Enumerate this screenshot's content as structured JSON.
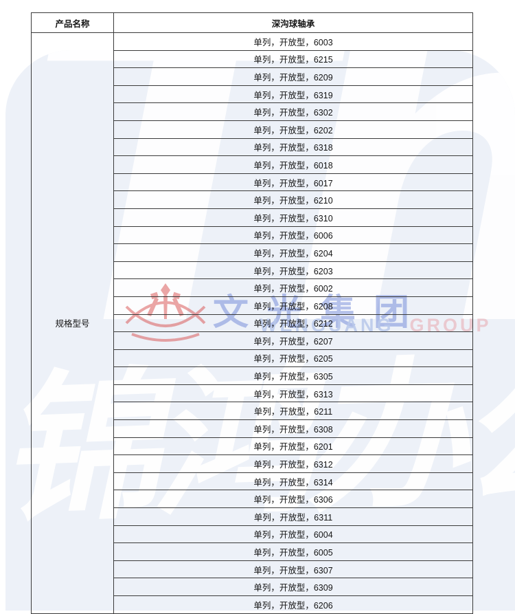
{
  "table": {
    "header": {
      "product_name_label": "产品名称",
      "product_name_value": "深沟球轴承"
    },
    "row_label": "规格型号",
    "rows": [
      "单列，开放型，6003",
      "单列，开放型，6215",
      "单列，开放型，6209",
      "单列，开放型，6319",
      "单列，开放型，6302",
      "单列，开放型，6202",
      "单列，开放型，6318",
      "单列，开放型，6018",
      "单列，开放型，6017",
      "单列，开放型，6210",
      "单列，开放型，6310",
      "单列，开放型，6006",
      "单列，开放型，6204",
      "单列，开放型，6203",
      "单列，开放型，6002",
      "单列，开放型，6208",
      "单列，开放型，6212",
      "单列，开放型，6207",
      "单列，开放型，6205",
      "单列，开放型，6305",
      "单列，开放型，6313",
      "单列，开放型，6211",
      "单列，开放型，6308",
      "单列，开放型，6201",
      "单列，开放型，6312",
      "单列，开放型，6314",
      "单列，开放型，6306",
      "单列，开放型，6311",
      "单列，开放型，6004",
      "单列，开放型，6005",
      "单列，开放型，6307",
      "单列，开放型，6309",
      "单列，开放型，6206"
    ]
  },
  "watermark": {
    "monogram": "Th",
    "calligraphy": "锦鸿办公",
    "company_cn": "文光集团",
    "company_en_word1": "WENGUANG",
    "company_en_word2": "GROUP",
    "colors": {
      "pale_blue_bg": "#edf1f8",
      "logo_red": "#d94f4f",
      "cn_blue": "#6f87d8",
      "en_light_blue": "#b9c8ea",
      "en_pink": "#eac3ca"
    }
  }
}
